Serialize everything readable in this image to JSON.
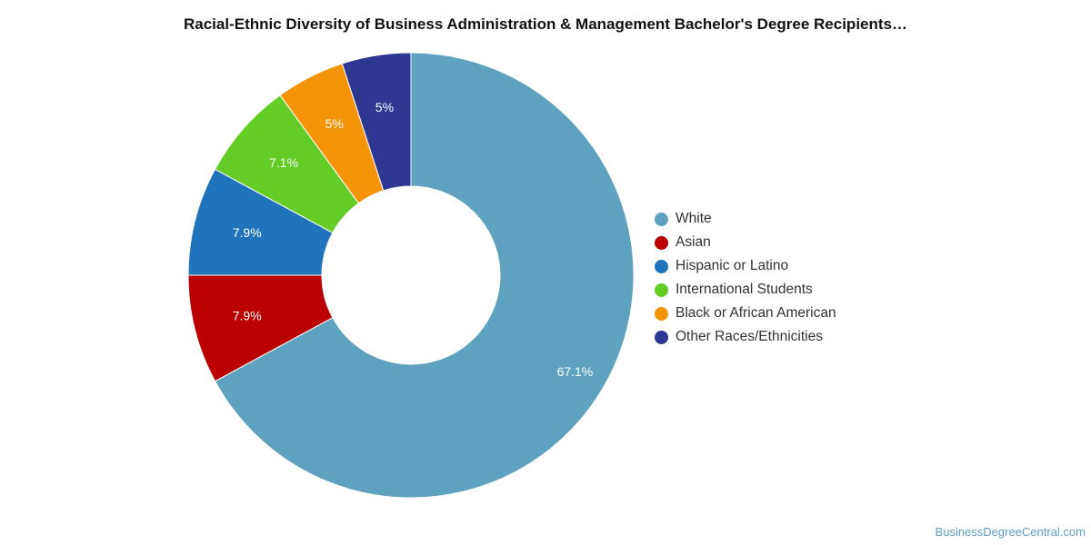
{
  "chart_data": {
    "type": "pie",
    "title": "Racial-Ethnic Diversity of Business Administration & Management Bachelor's Degree Recipients…",
    "categories": [
      "White",
      "Asian",
      "Hispanic or Latino",
      "International Students",
      "Black or African American",
      "Other Races/Ethnicities"
    ],
    "values": [
      67.1,
      7.9,
      7.9,
      7.1,
      5,
      5
    ],
    "value_labels": [
      "67.1%",
      "7.9%",
      "7.9%",
      "7.1%",
      "5%",
      "5%"
    ],
    "colors": [
      "#5fa2bf",
      "#bb0000",
      "#1f74bb",
      "#63cc25",
      "#f59406",
      "#2e3792"
    ],
    "donut": true,
    "legend_position": "right"
  },
  "watermark": "BusinessDegreeCentral.com"
}
